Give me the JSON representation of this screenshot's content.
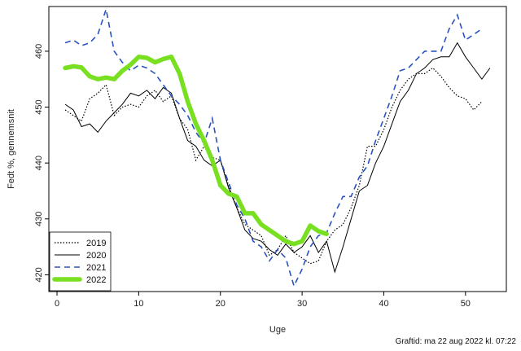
{
  "chart_data": {
    "type": "line",
    "title": "",
    "xlabel": "Uge",
    "ylabel": "Fedt %, gennemsnit",
    "xlim": [
      -1,
      55
    ],
    "ylim": [
      417,
      468
    ],
    "x_ticks": [
      0,
      10,
      20,
      30,
      40,
      50
    ],
    "y_ticks": [
      420,
      430,
      440,
      450,
      460
    ],
    "grid": false,
    "legend_position": "bottom-left",
    "series": [
      {
        "name": "2019",
        "style": "dotted",
        "color": "#000000",
        "x": [
          1,
          2,
          3,
          4,
          5,
          6,
          7,
          8,
          9,
          10,
          11,
          12,
          13,
          14,
          15,
          16,
          17,
          18,
          19,
          20,
          21,
          22,
          23,
          24,
          25,
          26,
          27,
          28,
          29,
          30,
          31,
          32,
          33,
          34,
          35,
          36,
          37,
          38,
          39,
          40,
          41,
          42,
          43,
          44,
          45,
          46,
          47,
          48,
          49,
          50,
          51,
          52
        ],
        "y": [
          449.5,
          448.5,
          447.5,
          451.5,
          452.5,
          454,
          448.5,
          450,
          450.5,
          450,
          452,
          453,
          451,
          452,
          448,
          446,
          440.5,
          443,
          441,
          440.5,
          436,
          432,
          429,
          428,
          427,
          423.5,
          424.5,
          427,
          424,
          423,
          422,
          422.5,
          426,
          428,
          429,
          432,
          436,
          443,
          443,
          446,
          450,
          453,
          455,
          456,
          456,
          457,
          455.5,
          453.5,
          452,
          451.5,
          449.5,
          451
        ]
      },
      {
        "name": "2020",
        "style": "solid",
        "color": "#000000",
        "x": [
          1,
          2,
          3,
          4,
          5,
          6,
          7,
          8,
          9,
          10,
          11,
          12,
          13,
          14,
          15,
          16,
          17,
          18,
          19,
          20,
          21,
          22,
          23,
          24,
          25,
          26,
          27,
          28,
          29,
          30,
          31,
          32,
          33,
          34,
          35,
          36,
          37,
          38,
          39,
          40,
          41,
          42,
          43,
          44,
          45,
          46,
          47,
          48,
          49,
          50,
          51,
          52,
          53
        ],
        "y": [
          450.5,
          449.5,
          446.5,
          447,
          445.5,
          447.5,
          449,
          450.5,
          452.5,
          452,
          453,
          451.5,
          453.5,
          452.5,
          448,
          444,
          443,
          440.5,
          439.5,
          440.5,
          435.5,
          432,
          428,
          426.5,
          426,
          424.5,
          423.5,
          425.5,
          424,
          425,
          427,
          424,
          426,
          420.5,
          425,
          430,
          435,
          436,
          440,
          443,
          447,
          451,
          453,
          456,
          457,
          458.5,
          459,
          459,
          461.5,
          459,
          457,
          455,
          457
        ]
      },
      {
        "name": "2021",
        "style": "dashed",
        "color": "#2a52be",
        "x": [
          1,
          2,
          3,
          4,
          5,
          6,
          7,
          8,
          9,
          10,
          11,
          12,
          13,
          14,
          15,
          16,
          17,
          18,
          19,
          20,
          21,
          22,
          23,
          24,
          25,
          26,
          27,
          28,
          29,
          30,
          31,
          32,
          33,
          34,
          35,
          36,
          37,
          38,
          39,
          40,
          41,
          42,
          43,
          44,
          45,
          46,
          47,
          48,
          49,
          50,
          51,
          52
        ],
        "y": [
          461.5,
          462,
          461,
          461.5,
          463,
          467.5,
          460,
          458,
          456.5,
          457.5,
          457,
          456,
          454,
          452,
          450.5,
          448.5,
          445.5,
          443.5,
          448,
          440.5,
          436.5,
          432.5,
          430,
          426,
          425,
          422.5,
          424.5,
          423,
          418,
          421,
          425,
          427,
          427.5,
          431,
          434,
          434,
          437.5,
          439.5,
          444,
          448,
          452,
          456.5,
          457,
          458.5,
          460,
          460,
          460,
          464,
          466.5,
          462,
          463,
          464
        ]
      },
      {
        "name": "2022",
        "style": "thick",
        "color": "#78e020",
        "x": [
          1,
          2,
          3,
          4,
          5,
          6,
          7,
          8,
          9,
          10,
          11,
          12,
          13,
          14,
          15,
          16,
          17,
          18,
          19,
          20,
          21,
          22,
          23,
          24,
          25,
          26,
          27,
          28,
          29,
          30,
          31,
          32,
          33
        ],
        "y": [
          457,
          457.3,
          457.1,
          455.5,
          455,
          455.3,
          455,
          456.5,
          457.6,
          459,
          458.8,
          458,
          458.6,
          459,
          456,
          451,
          447,
          444,
          440.5,
          436,
          434.5,
          434,
          431,
          431,
          429,
          428,
          427,
          426,
          425.5,
          426,
          428.8,
          427.8,
          427.3
        ]
      }
    ]
  },
  "footnote": "Graftid: ma 22 aug 2022 kl. 07:22"
}
